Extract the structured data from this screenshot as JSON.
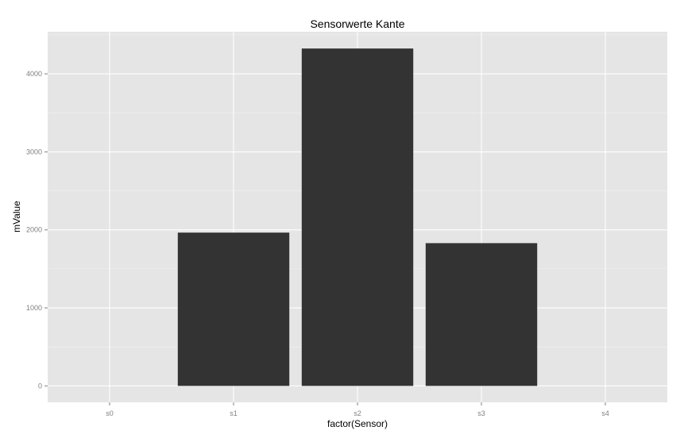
{
  "chart_data": {
    "type": "bar",
    "title": "Sensorwerte Kante",
    "xlabel": "factor(Sensor)",
    "ylabel": "mValue",
    "categories": [
      "s0",
      "s1",
      "s2",
      "s3",
      "s4"
    ],
    "values": [
      0,
      1965,
      4325,
      1830,
      0
    ],
    "y_ticks": [
      0,
      1000,
      2000,
      3000,
      4000
    ],
    "y_tick_labels": [
      "0",
      "1000",
      "2000",
      "3000",
      "4000"
    ],
    "ylim": [
      -210,
      4540
    ],
    "grid": true,
    "legend": "none",
    "colors": {
      "panel": "#e5e5e5",
      "grid_major": "#ffffff",
      "grid_minor": "#f2f2f2",
      "bar": "#333333",
      "tick_text": "#7f7f7f"
    }
  }
}
